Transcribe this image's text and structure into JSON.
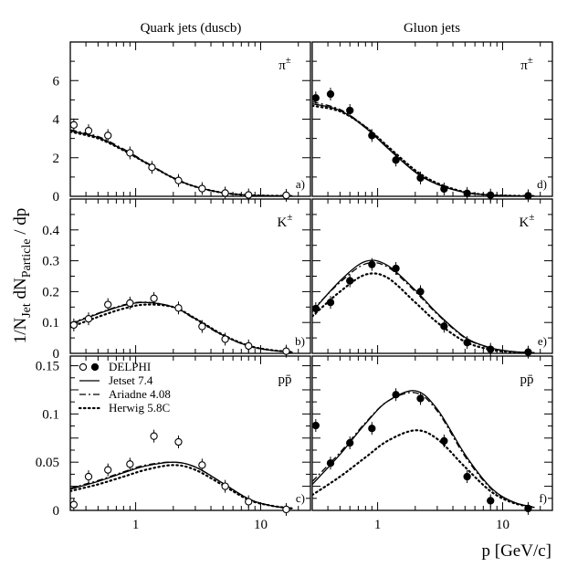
{
  "chart_data": {
    "type": "scatter",
    "xlabel": "p [GeV/c]",
    "ylabel": "1/N_Jet dN_Particle / dp",
    "xscale": "log",
    "xlim": [
      0.3,
      25
    ],
    "columns": [
      "Quark jets (duscb)",
      "Gluon jets"
    ],
    "legend": {
      "placement": "top-left of panel c",
      "entries": [
        {
          "label": "DELPHI",
          "style": "markers (open: quark, filled: gluon)"
        },
        {
          "label": "Jetset 7.4",
          "style": "solid"
        },
        {
          "label": "Ariadne 4.08",
          "style": "dash-dot"
        },
        {
          "label": "Herwig 5.8C",
          "style": "dotted"
        }
      ]
    },
    "panels": [
      {
        "id": "a",
        "tag": "a)",
        "particle": "π±",
        "jet": "quark",
        "row": 0,
        "col": 0,
        "ylim": [
          0,
          8
        ],
        "yticks": [
          0,
          2,
          4,
          6
        ],
        "data": {
          "x": [
            0.32,
            0.42,
            0.6,
            0.9,
            1.35,
            2.2,
            3.4,
            5.2,
            8.0,
            16.0
          ],
          "y": [
            3.7,
            3.4,
            3.15,
            2.25,
            1.5,
            0.82,
            0.4,
            0.17,
            0.07,
            0.05
          ]
        },
        "models": [
          {
            "name": "Jetset 7.4",
            "x": [
              0.3,
              0.5,
              0.8,
              1.2,
              2.0,
              3.0,
              5.0,
              8.0,
              12.0,
              18.0
            ],
            "y": [
              3.4,
              3.05,
              2.4,
              1.75,
              0.95,
              0.5,
              0.18,
              0.06,
              0.03,
              0.015
            ]
          },
          {
            "name": "Ariadne 4.08",
            "x": [
              0.3,
              0.5,
              0.8,
              1.2,
              2.0,
              3.0,
              5.0,
              8.0,
              12.0,
              18.0
            ],
            "y": [
              3.45,
              3.1,
              2.45,
              1.78,
              0.96,
              0.5,
              0.18,
              0.06,
              0.03,
              0.015
            ]
          },
          {
            "name": "Herwig 5.8C",
            "x": [
              0.3,
              0.5,
              0.8,
              1.2,
              2.0,
              3.0,
              5.0,
              8.0,
              12.0,
              18.0
            ],
            "y": [
              3.35,
              3.0,
              2.38,
              1.74,
              0.95,
              0.5,
              0.18,
              0.06,
              0.03,
              0.015
            ]
          }
        ]
      },
      {
        "id": "b",
        "tag": "b)",
        "particle": "K±",
        "jet": "quark",
        "row": 1,
        "col": 0,
        "ylim": [
          0,
          0.5
        ],
        "yticks": [
          0,
          0.1,
          0.2,
          0.3,
          0.4
        ],
        "data": {
          "x": [
            0.32,
            0.42,
            0.6,
            0.9,
            1.4,
            2.2,
            3.4,
            5.2,
            8.0,
            16.0
          ],
          "y": [
            0.092,
            0.112,
            0.158,
            0.163,
            0.178,
            0.147,
            0.087,
            0.046,
            0.024,
            0.007
          ]
        },
        "models": [
          {
            "name": "Jetset 7.4",
            "x": [
              0.3,
              0.5,
              0.8,
              1.2,
              2.0,
              3.0,
              5.0,
              8.0,
              12.0,
              18.0
            ],
            "y": [
              0.095,
              0.128,
              0.155,
              0.165,
              0.15,
              0.112,
              0.058,
              0.024,
              0.01,
              0.004
            ]
          },
          {
            "name": "Ariadne 4.08",
            "x": [
              0.3,
              0.5,
              0.8,
              1.2,
              2.0,
              3.0,
              5.0,
              8.0,
              12.0,
              18.0
            ],
            "y": [
              0.097,
              0.13,
              0.157,
              0.166,
              0.15,
              0.11,
              0.057,
              0.024,
              0.01,
              0.004
            ]
          },
          {
            "name": "Herwig 5.8C",
            "x": [
              0.3,
              0.5,
              0.8,
              1.2,
              2.0,
              3.0,
              5.0,
              8.0,
              12.0,
              18.0
            ],
            "y": [
              0.085,
              0.118,
              0.145,
              0.158,
              0.15,
              0.113,
              0.06,
              0.025,
              0.011,
              0.004
            ]
          }
        ]
      },
      {
        "id": "c",
        "tag": "c)",
        "particle": "pp̄",
        "jet": "quark",
        "row": 2,
        "col": 0,
        "ylim": [
          0,
          0.16
        ],
        "yticks": [
          0,
          0.025,
          0.05,
          0.075,
          0.1,
          0.125,
          0.15
        ],
        "ytick_labels": [
          "0",
          "",
          "0.05",
          "",
          "0.1",
          "",
          "0.15"
        ],
        "data": {
          "x": [
            0.32,
            0.42,
            0.6,
            0.9,
            1.4,
            2.2,
            3.4,
            5.2,
            8.0,
            16.0
          ],
          "y": [
            0.006,
            0.035,
            0.042,
            0.048,
            0.077,
            0.071,
            0.047,
            0.025,
            0.009,
            0.001
          ]
        },
        "models": [
          {
            "name": "Jetset 7.4",
            "x": [
              0.3,
              0.5,
              0.8,
              1.2,
              2.0,
              3.0,
              5.0,
              8.0,
              12.0,
              18.0
            ],
            "y": [
              0.022,
              0.03,
              0.039,
              0.046,
              0.05,
              0.045,
              0.028,
              0.012,
              0.005,
              0.002
            ]
          },
          {
            "name": "Ariadne 4.08",
            "x": [
              0.3,
              0.5,
              0.8,
              1.2,
              2.0,
              3.0,
              5.0,
              8.0,
              12.0,
              18.0
            ],
            "y": [
              0.023,
              0.031,
              0.04,
              0.047,
              0.05,
              0.045,
              0.028,
              0.012,
              0.005,
              0.002
            ]
          },
          {
            "name": "Herwig 5.8C",
            "x": [
              0.3,
              0.5,
              0.8,
              1.2,
              2.0,
              3.0,
              5.0,
              8.0,
              12.0,
              18.0
            ],
            "y": [
              0.02,
              0.027,
              0.035,
              0.042,
              0.047,
              0.042,
              0.026,
              0.011,
              0.005,
              0.002
            ]
          }
        ]
      },
      {
        "id": "d",
        "tag": "d)",
        "particle": "π±",
        "jet": "gluon",
        "row": 0,
        "col": 1,
        "ylim": [
          0,
          8
        ],
        "yticks": [
          0,
          2,
          4,
          6
        ],
        "data": {
          "x": [
            0.32,
            0.42,
            0.6,
            0.9,
            1.4,
            2.2,
            3.4,
            5.2,
            8.0,
            16.0
          ],
          "y": [
            5.1,
            5.3,
            4.45,
            3.15,
            1.88,
            0.95,
            0.38,
            0.15,
            0.06,
            0.03
          ]
        },
        "models": [
          {
            "name": "Jetset 7.4",
            "x": [
              0.3,
              0.5,
              0.8,
              1.2,
              2.0,
              3.0,
              5.0,
              8.0,
              12.0,
              18.0
            ],
            "y": [
              4.8,
              4.45,
              3.55,
              2.5,
              1.25,
              0.62,
              0.2,
              0.06,
              0.025,
              0.01
            ]
          },
          {
            "name": "Ariadne 4.08",
            "x": [
              0.3,
              0.5,
              0.8,
              1.2,
              2.0,
              3.0,
              5.0,
              8.0,
              12.0,
              18.0
            ],
            "y": [
              4.9,
              4.5,
              3.6,
              2.55,
              1.28,
              0.63,
              0.2,
              0.06,
              0.025,
              0.01
            ]
          },
          {
            "name": "Herwig 5.8C",
            "x": [
              0.3,
              0.5,
              0.8,
              1.2,
              2.0,
              3.0,
              5.0,
              8.0,
              12.0,
              18.0
            ],
            "y": [
              4.7,
              4.4,
              3.6,
              2.6,
              1.35,
              0.68,
              0.22,
              0.07,
              0.028,
              0.011
            ]
          }
        ]
      },
      {
        "id": "e",
        "tag": "e)",
        "particle": "K±",
        "jet": "gluon",
        "row": 1,
        "col": 1,
        "ylim": [
          0,
          0.5
        ],
        "yticks": [
          0,
          0.1,
          0.2,
          0.3,
          0.4
        ],
        "data": {
          "x": [
            0.32,
            0.42,
            0.6,
            0.9,
            1.4,
            2.2,
            3.4,
            5.2,
            8.0,
            16.0
          ],
          "y": [
            0.145,
            0.165,
            0.235,
            0.288,
            0.275,
            0.2,
            0.088,
            0.035,
            0.013,
            0.004
          ]
        },
        "models": [
          {
            "name": "Jetset 7.4",
            "x": [
              0.3,
              0.5,
              0.8,
              1.2,
              2.0,
              3.0,
              5.0,
              8.0,
              12.0,
              18.0
            ],
            "y": [
              0.135,
              0.235,
              0.298,
              0.285,
              0.205,
              0.13,
              0.052,
              0.018,
              0.006,
              0.002
            ]
          },
          {
            "name": "Ariadne 4.08",
            "x": [
              0.3,
              0.5,
              0.8,
              1.2,
              2.0,
              3.0,
              5.0,
              8.0,
              12.0,
              18.0
            ],
            "y": [
              0.14,
              0.23,
              0.29,
              0.28,
              0.2,
              0.127,
              0.05,
              0.017,
              0.006,
              0.002
            ]
          },
          {
            "name": "Herwig 5.8C",
            "x": [
              0.3,
              0.5,
              0.8,
              1.2,
              2.0,
              3.0,
              5.0,
              8.0,
              12.0,
              18.0
            ],
            "y": [
              0.12,
              0.2,
              0.255,
              0.245,
              0.165,
              0.1,
              0.038,
              0.012,
              0.004,
              0.001
            ]
          }
        ]
      },
      {
        "id": "f",
        "tag": "f)",
        "particle": "pp̄",
        "jet": "gluon",
        "row": 2,
        "col": 1,
        "ylim": [
          0,
          0.16
        ],
        "yticks": [
          0,
          0.025,
          0.05,
          0.075,
          0.1,
          0.125,
          0.15
        ],
        "ytick_labels": [
          "0",
          "",
          "0.05",
          "",
          "0.1",
          "",
          "0.15"
        ],
        "data": {
          "x": [
            0.32,
            0.42,
            0.6,
            0.9,
            1.4,
            2.2,
            3.4,
            5.2,
            8.0,
            16.0
          ],
          "y": [
            0.088,
            0.049,
            0.07,
            0.085,
            0.12,
            0.116,
            0.072,
            0.035,
            0.01,
            0.002
          ]
        },
        "models": [
          {
            "name": "Jetset 7.4",
            "x": [
              0.3,
              0.5,
              0.8,
              1.2,
              2.0,
              3.0,
              5.0,
              8.0,
              12.0,
              18.0
            ],
            "y": [
              0.027,
              0.058,
              0.09,
              0.113,
              0.124,
              0.105,
              0.058,
              0.024,
              0.009,
              0.003
            ]
          },
          {
            "name": "Ariadne 4.08",
            "x": [
              0.3,
              0.5,
              0.8,
              1.2,
              2.0,
              3.0,
              5.0,
              8.0,
              12.0,
              18.0
            ],
            "y": [
              0.03,
              0.06,
              0.091,
              0.113,
              0.122,
              0.103,
              0.056,
              0.023,
              0.009,
              0.003
            ]
          },
          {
            "name": "Herwig 5.8C",
            "x": [
              0.3,
              0.5,
              0.8,
              1.2,
              2.0,
              3.0,
              5.0,
              8.0,
              12.0,
              18.0
            ],
            "y": [
              0.016,
              0.035,
              0.055,
              0.072,
              0.083,
              0.074,
              0.045,
              0.02,
              0.008,
              0.003
            ]
          }
        ]
      }
    ],
    "xticks": [
      1,
      10
    ],
    "xtick_labels": [
      "1",
      "10"
    ]
  }
}
